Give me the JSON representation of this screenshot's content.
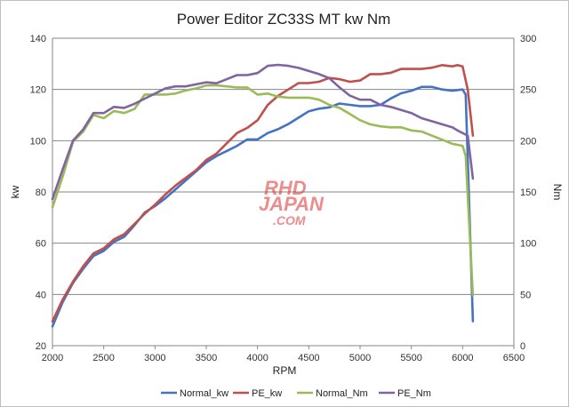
{
  "chart_data": {
    "type": "line",
    "title": "Power Editor ZC33S MT  kw Nm",
    "xlabel": "RPM",
    "ylabel_left": "kw",
    "ylabel_right": "Nm",
    "xlim": [
      2000,
      6500
    ],
    "ylim_left": [
      20,
      140
    ],
    "ylim_right": [
      0,
      300
    ],
    "x_ticks": [
      2000,
      2500,
      3000,
      3500,
      4000,
      4500,
      5000,
      5500,
      6000,
      6500
    ],
    "y_left_ticks": [
      20,
      40,
      60,
      80,
      100,
      120,
      140
    ],
    "y_right_ticks": [
      0,
      50,
      100,
      150,
      200,
      250,
      300
    ],
    "grid": "horizontal",
    "legend_position": "bottom",
    "watermark": [
      "RHD",
      "JAPAN",
      ".COM"
    ],
    "series": [
      {
        "name": "Normal_kw",
        "axis": "left",
        "color": "#4472c4",
        "points": [
          [
            2000,
            27.5
          ],
          [
            2100,
            37
          ],
          [
            2200,
            44.5
          ],
          [
            2300,
            50
          ],
          [
            2400,
            55
          ],
          [
            2500,
            57
          ],
          [
            2600,
            60.5
          ],
          [
            2700,
            62.5
          ],
          [
            2800,
            67
          ],
          [
            2900,
            72
          ],
          [
            3000,
            74.5
          ],
          [
            3100,
            77.5
          ],
          [
            3200,
            81
          ],
          [
            3300,
            84.5
          ],
          [
            3400,
            88
          ],
          [
            3500,
            91.5
          ],
          [
            3600,
            94
          ],
          [
            3700,
            96
          ],
          [
            3800,
            98
          ],
          [
            3900,
            100.5
          ],
          [
            4000,
            100.5
          ],
          [
            4100,
            103
          ],
          [
            4200,
            104.5
          ],
          [
            4300,
            106.5
          ],
          [
            4400,
            109
          ],
          [
            4500,
            111.5
          ],
          [
            4600,
            112.5
          ],
          [
            4700,
            113
          ],
          [
            4800,
            114.5
          ],
          [
            4900,
            114
          ],
          [
            5000,
            113.5
          ],
          [
            5100,
            113.5
          ],
          [
            5200,
            114
          ],
          [
            5300,
            116.5
          ],
          [
            5400,
            118.5
          ],
          [
            5500,
            119.5
          ],
          [
            5600,
            121
          ],
          [
            5700,
            121
          ],
          [
            5800,
            120
          ],
          [
            5900,
            119.5
          ],
          [
            6000,
            120
          ],
          [
            6030,
            118
          ],
          [
            6100,
            29.5
          ]
        ]
      },
      {
        "name": "PE_kw",
        "axis": "left",
        "color": "#c0504d",
        "points": [
          [
            2000,
            29.5
          ],
          [
            2100,
            38
          ],
          [
            2200,
            45
          ],
          [
            2300,
            51
          ],
          [
            2400,
            56
          ],
          [
            2500,
            58
          ],
          [
            2600,
            61.5
          ],
          [
            2700,
            63.5
          ],
          [
            2800,
            67.5
          ],
          [
            2900,
            71.5
          ],
          [
            3000,
            75
          ],
          [
            3100,
            79
          ],
          [
            3200,
            82.5
          ],
          [
            3300,
            85.5
          ],
          [
            3400,
            88.5
          ],
          [
            3500,
            92.5
          ],
          [
            3600,
            95
          ],
          [
            3700,
            99
          ],
          [
            3800,
            103
          ],
          [
            3900,
            105
          ],
          [
            4000,
            108
          ],
          [
            4100,
            114
          ],
          [
            4200,
            117.5
          ],
          [
            4300,
            120
          ],
          [
            4400,
            122.5
          ],
          [
            4500,
            122.5
          ],
          [
            4600,
            123
          ],
          [
            4700,
            124.5
          ],
          [
            4800,
            124
          ],
          [
            4900,
            123
          ],
          [
            5000,
            123.5
          ],
          [
            5100,
            126
          ],
          [
            5200,
            126
          ],
          [
            5300,
            126.5
          ],
          [
            5400,
            128
          ],
          [
            5500,
            128
          ],
          [
            5600,
            128
          ],
          [
            5700,
            128.5
          ],
          [
            5800,
            129.5
          ],
          [
            5900,
            129
          ],
          [
            5950,
            129.5
          ],
          [
            6000,
            129
          ],
          [
            6050,
            120
          ],
          [
            6100,
            102
          ]
        ]
      },
      {
        "name": "Normal_Nm",
        "axis": "right",
        "color": "#9bbb59",
        "points": [
          [
            2000,
            135
          ],
          [
            2100,
            165
          ],
          [
            2200,
            199
          ],
          [
            2300,
            209
          ],
          [
            2400,
            225
          ],
          [
            2500,
            222
          ],
          [
            2600,
            229
          ],
          [
            2700,
            227
          ],
          [
            2800,
            231
          ],
          [
            2900,
            245
          ],
          [
            3000,
            245
          ],
          [
            3100,
            245
          ],
          [
            3200,
            246
          ],
          [
            3300,
            249
          ],
          [
            3400,
            251
          ],
          [
            3500,
            254
          ],
          [
            3600,
            254
          ],
          [
            3700,
            253
          ],
          [
            3800,
            252
          ],
          [
            3900,
            252
          ],
          [
            4000,
            245
          ],
          [
            4100,
            246
          ],
          [
            4200,
            243
          ],
          [
            4300,
            242
          ],
          [
            4400,
            242
          ],
          [
            4500,
            242
          ],
          [
            4600,
            240
          ],
          [
            4700,
            235
          ],
          [
            4800,
            232
          ],
          [
            4900,
            226
          ],
          [
            5000,
            220
          ],
          [
            5100,
            216
          ],
          [
            5200,
            214
          ],
          [
            5300,
            213
          ],
          [
            5400,
            213
          ],
          [
            5500,
            210
          ],
          [
            5600,
            209
          ],
          [
            5700,
            205
          ],
          [
            5800,
            201
          ],
          [
            5900,
            197
          ],
          [
            6000,
            195
          ],
          [
            6030,
            185
          ],
          [
            6100,
            49
          ]
        ]
      },
      {
        "name": "PE_Nm",
        "axis": "right",
        "color": "#8064a2",
        "points": [
          [
            2000,
            143
          ],
          [
            2100,
            172
          ],
          [
            2200,
            200
          ],
          [
            2300,
            211
          ],
          [
            2400,
            227
          ],
          [
            2500,
            227
          ],
          [
            2600,
            233
          ],
          [
            2700,
            232
          ],
          [
            2800,
            236
          ],
          [
            2900,
            241
          ],
          [
            3000,
            246
          ],
          [
            3100,
            251
          ],
          [
            3200,
            253
          ],
          [
            3300,
            253
          ],
          [
            3400,
            255
          ],
          [
            3500,
            257
          ],
          [
            3600,
            256
          ],
          [
            3700,
            260
          ],
          [
            3800,
            264
          ],
          [
            3900,
            264
          ],
          [
            4000,
            266
          ],
          [
            4100,
            273
          ],
          [
            4200,
            274
          ],
          [
            4300,
            273
          ],
          [
            4400,
            271
          ],
          [
            4500,
            268
          ],
          [
            4600,
            265
          ],
          [
            4700,
            261
          ],
          [
            4800,
            252
          ],
          [
            4900,
            244
          ],
          [
            5000,
            240
          ],
          [
            5100,
            240
          ],
          [
            5200,
            235
          ],
          [
            5300,
            233
          ],
          [
            5400,
            230
          ],
          [
            5500,
            227
          ],
          [
            5600,
            222
          ],
          [
            5700,
            219
          ],
          [
            5800,
            216
          ],
          [
            5900,
            213
          ],
          [
            5950,
            210
          ],
          [
            6050,
            205
          ],
          [
            6100,
            163
          ]
        ]
      }
    ]
  }
}
